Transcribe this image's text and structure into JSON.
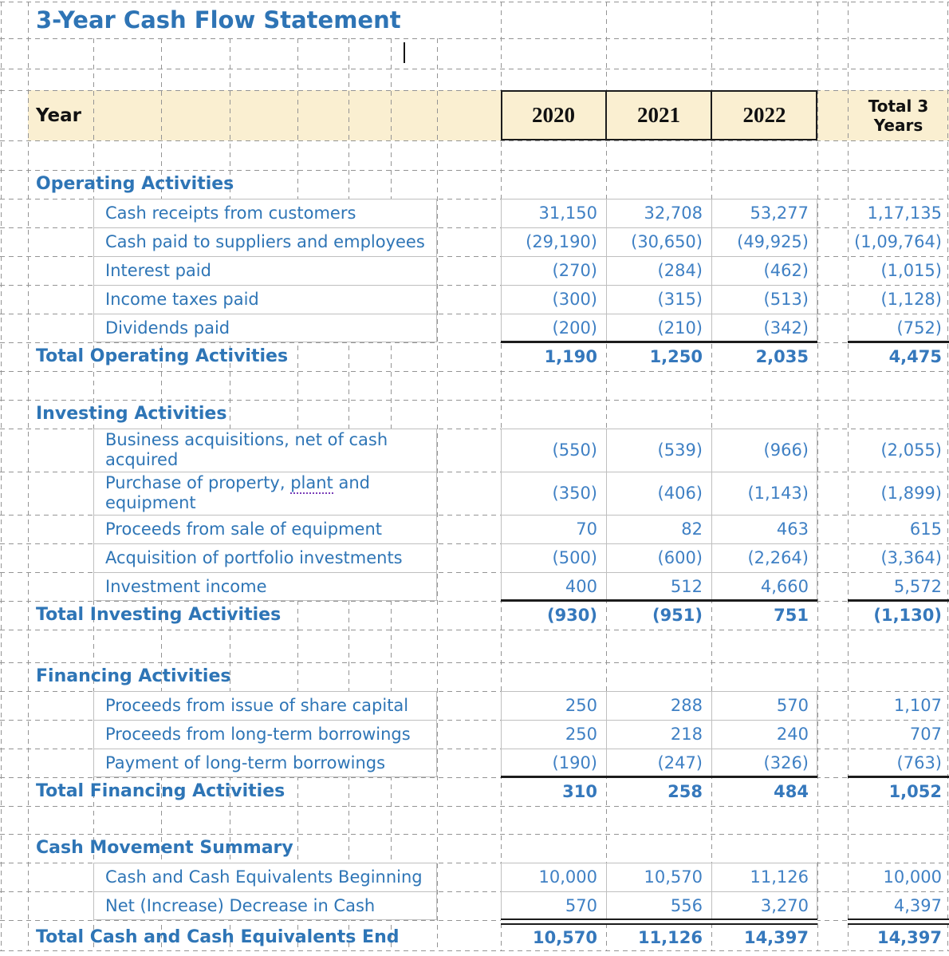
{
  "title": "3-Year Cash Flow Statement",
  "header": {
    "row_label": "Year",
    "years": [
      "2020",
      "2021",
      "2022"
    ],
    "total_label": "Total 3 Years"
  },
  "sections": [
    {
      "heading": "Operating Activities",
      "items": [
        {
          "label": "Cash receipts from customers",
          "values": [
            "31,150",
            "32,708",
            "53,277",
            "1,17,135"
          ]
        },
        {
          "label": "Cash paid to suppliers and employees",
          "values": [
            "(29,190)",
            "(30,650)",
            "(49,925)",
            "(1,09,764)"
          ]
        },
        {
          "label": "Interest paid",
          "values": [
            "(270)",
            "(284)",
            "(462)",
            "(1,015)"
          ]
        },
        {
          "label": "Income taxes paid",
          "values": [
            "(300)",
            "(315)",
            "(513)",
            "(1,128)"
          ]
        },
        {
          "label": "Dividends paid",
          "values": [
            "(200)",
            "(210)",
            "(342)",
            "(752)"
          ]
        }
      ],
      "total": {
        "label": "Total Operating Activities",
        "values": [
          "1,190",
          "1,250",
          "2,035",
          "4,475"
        ],
        "top_border": "thick"
      }
    },
    {
      "heading": "Investing Activities",
      "items": [
        {
          "label": "Business acquisitions, net of cash\nacquired",
          "values": [
            "(550)",
            "(539)",
            "(966)",
            "(2,055)"
          ]
        },
        {
          "label": "Purchase of property, plant and\nequipment",
          "misspelled_word": "plant",
          "values": [
            "(350)",
            "(406)",
            "(1,143)",
            "(1,899)"
          ]
        },
        {
          "label": "Proceeds from sale of equipment",
          "values": [
            "70",
            "82",
            "463",
            "615"
          ]
        },
        {
          "label": "Acquisition of portfolio investments",
          "values": [
            "(500)",
            "(600)",
            "(2,264)",
            "(3,364)"
          ]
        },
        {
          "label": "Investment income",
          "values": [
            "400",
            "512",
            "4,660",
            "5,572"
          ]
        }
      ],
      "total": {
        "label": "Total Investing Activities",
        "values": [
          "(930)",
          "(951)",
          "751",
          "(1,130)"
        ],
        "top_border": "thick"
      }
    },
    {
      "heading": "Financing Activities",
      "items": [
        {
          "label": "Proceeds from issue of share capital",
          "values": [
            "250",
            "288",
            "570",
            "1,107"
          ]
        },
        {
          "label": "Proceeds from long-term borrowings",
          "values": [
            "250",
            "218",
            "240",
            "707"
          ]
        },
        {
          "label": "Payment of long-term borrowings",
          "values": [
            "(190)",
            "(247)",
            "(326)",
            "(763)"
          ]
        }
      ],
      "total": {
        "label": "Total Financing Activities",
        "values": [
          "310",
          "258",
          "484",
          "1,052"
        ],
        "top_border": "thick"
      }
    },
    {
      "heading": "Cash Movement Summary",
      "items": [
        {
          "label": "Cash and Cash Equivalents Beginning",
          "values": [
            "10,000",
            "10,570",
            "11,126",
            "10,000"
          ]
        },
        {
          "label": "Net (Increase) Decrease in Cash",
          "values": [
            "570",
            "556",
            "3,270",
            "4,397"
          ]
        }
      ],
      "total": {
        "label": "Total Cash and Cash Equivalents End",
        "values": [
          "10,570",
          "11,126",
          "14,397",
          "14,397"
        ],
        "top_border": "double"
      }
    }
  ],
  "colors": {
    "title_blue": "#2E74B5",
    "label_blue": "#2E75B6",
    "number_blue": "#3F80C4",
    "header_fill": "#FAEFD1",
    "gridline_gray": "#949494",
    "cell_border_gray": "#BFBFBF",
    "border_black": "#1C1C1C"
  }
}
